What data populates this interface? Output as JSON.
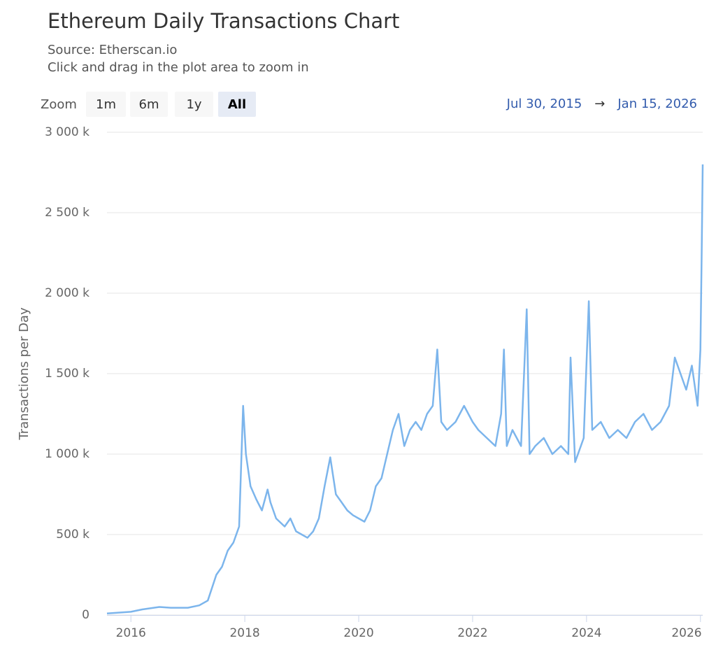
{
  "zoom": {
    "label": "Zoom",
    "buttons": [
      "1m",
      "6m",
      "1y",
      "All"
    ],
    "selected": 3
  },
  "range": {
    "from": "Jul 30, 2015",
    "arrow": "→",
    "to": "Jan 15, 2026"
  },
  "chart_data": {
    "type": "line",
    "title": "Ethereum Daily Transactions Chart",
    "subtitle": "Source: Etherscan.io",
    "note": "Click and drag in the plot area to zoom in",
    "y_label": "Transactions per Day",
    "grid": true,
    "xlim": [
      2015.58,
      2026.04
    ],
    "xticks": [
      2016,
      2018,
      2020,
      2022,
      2024,
      2026
    ],
    "ylim": [
      0,
      3000000
    ],
    "yticks": [
      0,
      {
        "value": 500000,
        "label": "500 k"
      },
      {
        "value": 1000000,
        "label": "1 000 k"
      },
      {
        "value": 1500000,
        "label": "1 500 k"
      },
      {
        "value": 2000000,
        "label": "2 000 k"
      },
      {
        "value": 2500000,
        "label": "2 500 k"
      },
      {
        "value": 3000000,
        "label": "3 000 k"
      }
    ],
    "series": [
      {
        "name": "Transactions",
        "color": "#7cb5ec",
        "x": [
          2015.58,
          2015.8,
          2016.0,
          2016.2,
          2016.5,
          2016.7,
          2017.0,
          2017.2,
          2017.35,
          2017.5,
          2017.6,
          2017.7,
          2017.8,
          2017.9,
          2017.97,
          2018.02,
          2018.1,
          2018.2,
          2018.3,
          2018.4,
          2018.45,
          2018.55,
          2018.7,
          2018.8,
          2018.9,
          2019.0,
          2019.1,
          2019.2,
          2019.3,
          2019.4,
          2019.5,
          2019.6,
          2019.7,
          2019.8,
          2019.9,
          2020.0,
          2020.1,
          2020.2,
          2020.3,
          2020.4,
          2020.5,
          2020.6,
          2020.7,
          2020.8,
          2020.9,
          2021.0,
          2021.1,
          2021.2,
          2021.3,
          2021.38,
          2021.45,
          2021.55,
          2021.7,
          2021.85,
          2022.0,
          2022.1,
          2022.25,
          2022.4,
          2022.5,
          2022.55,
          2022.6,
          2022.7,
          2022.85,
          2022.95,
          2023.0,
          2023.1,
          2023.25,
          2023.4,
          2023.55,
          2023.68,
          2023.72,
          2023.8,
          2023.95,
          2024.04,
          2024.1,
          2024.25,
          2024.4,
          2024.55,
          2024.7,
          2024.85,
          2025.0,
          2025.15,
          2025.3,
          2025.45,
          2025.55,
          2025.65,
          2025.75,
          2025.85,
          2025.95,
          2026.0,
          2026.02,
          2026.04
        ],
        "values": [
          10000,
          15000,
          20000,
          35000,
          50000,
          45000,
          45000,
          60000,
          90000,
          250000,
          300000,
          400000,
          450000,
          550000,
          1300000,
          1000000,
          800000,
          720000,
          650000,
          780000,
          700000,
          600000,
          550000,
          600000,
          520000,
          500000,
          480000,
          520000,
          600000,
          800000,
          980000,
          750000,
          700000,
          650000,
          620000,
          600000,
          580000,
          650000,
          800000,
          850000,
          1000000,
          1150000,
          1250000,
          1050000,
          1150000,
          1200000,
          1150000,
          1250000,
          1300000,
          1650000,
          1200000,
          1150000,
          1200000,
          1300000,
          1200000,
          1150000,
          1100000,
          1050000,
          1250000,
          1650000,
          1050000,
          1150000,
          1050000,
          1900000,
          1000000,
          1050000,
          1100000,
          1000000,
          1050000,
          1000000,
          1600000,
          950000,
          1100000,
          1950000,
          1150000,
          1200000,
          1100000,
          1150000,
          1100000,
          1200000,
          1250000,
          1150000,
          1200000,
          1300000,
          1600000,
          1500000,
          1400000,
          1550000,
          1300000,
          1650000,
          2200000,
          2800000
        ]
      }
    ]
  }
}
